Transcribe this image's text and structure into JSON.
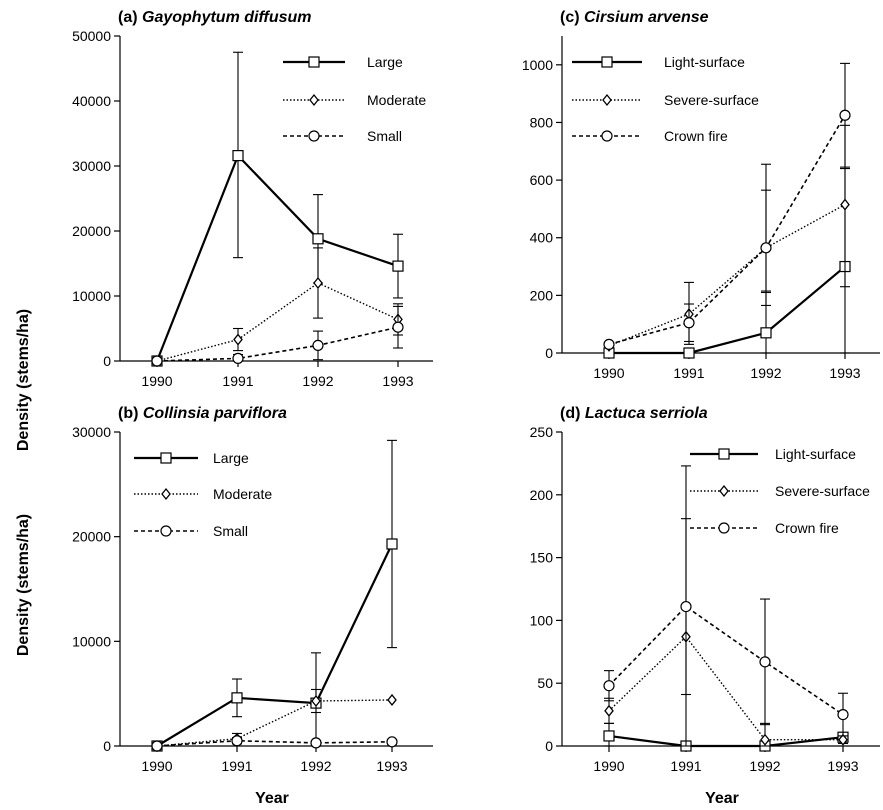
{
  "x_axis_title": "Year",
  "y_axis_title": "Density  (stems/ha)",
  "styles": {
    "Large": {
      "dash": "",
      "width": 2.2,
      "marker": "square"
    },
    "Moderate": {
      "dash": "1.5,2",
      "width": 1.4,
      "marker": "diamond"
    },
    "Small": {
      "dash": "4,3",
      "width": 1.6,
      "marker": "circle"
    },
    "Light-surface": {
      "dash": "",
      "width": 2.2,
      "marker": "square"
    },
    "Severe-surface": {
      "dash": "1.5,2",
      "width": 1.4,
      "marker": "diamond"
    },
    "Crown fire": {
      "dash": "4,3",
      "width": 1.6,
      "marker": "circle"
    }
  },
  "chart_data": [
    {
      "id": "a",
      "type": "line",
      "letter": "(a)",
      "species": "Gayophytum  diffusum",
      "x": [
        "1990",
        "1991",
        "1992",
        "1993"
      ],
      "ylim": [
        0,
        50000
      ],
      "yticks": [
        "0",
        "10000",
        "20000",
        "30000",
        "40000",
        "50000"
      ],
      "series": [
        {
          "name": "Large",
          "values": [
            0,
            31600,
            18800,
            14600
          ],
          "err_upper": [
            0,
            47500,
            25600,
            19500
          ],
          "err_lower": [
            0,
            15900,
            12000,
            9700
          ]
        },
        {
          "name": "Moderate",
          "values": [
            0,
            3300,
            12000,
            6400
          ],
          "err_upper": [
            0,
            5000,
            17400,
            8800
          ],
          "err_lower": [
            0,
            1600,
            6600,
            4000
          ]
        },
        {
          "name": "Small",
          "values": [
            0,
            400,
            2400,
            5200
          ],
          "err_upper": [
            0,
            1000,
            4600,
            8400
          ],
          "err_lower": [
            0,
            0,
            200,
            2000
          ]
        }
      ]
    },
    {
      "id": "c",
      "type": "line",
      "letter": "(c)",
      "species": "Cirsium  arvense",
      "x": [
        "1990",
        "1991",
        "1992",
        "1993"
      ],
      "ylim": [
        0,
        1100
      ],
      "yticks": [
        "0",
        "200",
        "400",
        "600",
        "800",
        "1000"
      ],
      "series": [
        {
          "name": "Light-surface",
          "values": [
            0,
            0,
            70,
            300
          ],
          "err_upper": [
            0,
            0,
            210,
            640
          ],
          "err_lower": [
            0,
            0,
            0,
            0
          ]
        },
        {
          "name": "Severe-surface",
          "values": [
            25,
            135,
            365,
            515
          ],
          "err_upper": [
            25,
            245,
            655,
            790
          ],
          "err_lower": [
            25,
            30,
            215,
            230
          ]
        },
        {
          "name": "Crown fire",
          "values": [
            30,
            105,
            365,
            825
          ],
          "err_upper": [
            30,
            170,
            565,
            1005
          ],
          "err_lower": [
            30,
            40,
            165,
            645
          ]
        }
      ]
    },
    {
      "id": "b",
      "type": "line",
      "letter": "(b)",
      "species": "Collinsia  parviflora",
      "x": [
        "1990",
        "1991",
        "1992",
        "1993"
      ],
      "ylim": [
        0,
        30000
      ],
      "yticks": [
        "0",
        "10000",
        "20000",
        "30000"
      ],
      "series": [
        {
          "name": "Large",
          "values": [
            0,
            4600,
            4100,
            19300
          ],
          "err_upper": [
            0,
            6400,
            8900,
            29200
          ],
          "err_lower": [
            0,
            2800,
            0,
            9400
          ]
        },
        {
          "name": "Moderate",
          "values": [
            0,
            700,
            4300,
            4400
          ],
          "err_upper": [
            0,
            1200,
            5400,
            4400
          ],
          "err_lower": [
            0,
            200,
            3200,
            4400
          ]
        },
        {
          "name": "Small",
          "values": [
            0,
            500,
            300,
            400
          ],
          "err_upper": [
            0,
            800,
            500,
            600
          ],
          "err_lower": [
            0,
            200,
            100,
            200
          ]
        }
      ]
    },
    {
      "id": "d",
      "type": "line",
      "letter": "(d)",
      "species": "Lactuca  serriola",
      "x": [
        "1990",
        "1991",
        "1992",
        "1993"
      ],
      "ylim": [
        0,
        250
      ],
      "yticks": [
        "0",
        "50",
        "100",
        "150",
        "200",
        "250"
      ],
      "series": [
        {
          "name": "Light-surface",
          "values": [
            8,
            0,
            0,
            7
          ],
          "err_upper": [
            18,
            0,
            0,
            10
          ],
          "err_lower": [
            0,
            0,
            0,
            4
          ]
        },
        {
          "name": "Severe-surface",
          "values": [
            28,
            87,
            5,
            5
          ],
          "err_upper": [
            38,
            181,
            18,
            8
          ],
          "err_lower": [
            18,
            0,
            0,
            2
          ]
        },
        {
          "name": "Crown fire",
          "values": [
            48,
            111,
            67,
            25
          ],
          "err_upper": [
            60,
            223,
            117,
            42
          ],
          "err_lower": [
            36,
            41,
            17,
            8
          ]
        }
      ]
    }
  ]
}
